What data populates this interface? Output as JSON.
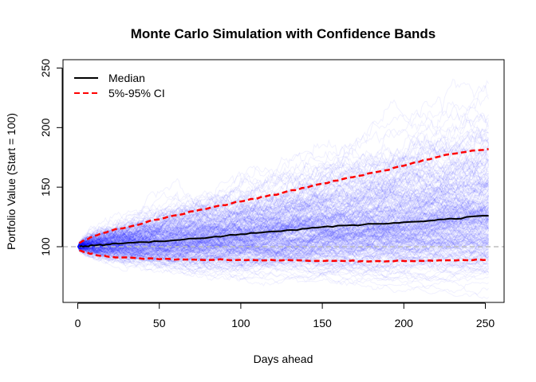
{
  "chart_data": {
    "type": "line",
    "title": "Monte Carlo Simulation with Confidence Bands",
    "xlabel": "Days ahead",
    "ylabel": "Portfolio Value (Start = 100)",
    "xlim": [
      0,
      252
    ],
    "ylim": [
      70,
      250
    ],
    "xticks": [
      "0",
      "50",
      "100",
      "150",
      "200",
      "250"
    ],
    "yticks": [
      "100",
      "150",
      "200",
      "250"
    ],
    "grid": false,
    "legend_position": "top-left",
    "legend": [
      "Median",
      "5%-95% CI"
    ],
    "reference_line": {
      "y": 100,
      "style": "dashed",
      "color": "#bdbdbd"
    },
    "simulated_paths": {
      "color": "#0000ff",
      "start": 100,
      "days": 252
    },
    "series": [
      {
        "name": "Median",
        "color": "#000000",
        "style": "solid",
        "x": [
          1,
          10,
          25,
          50,
          75,
          100,
          125,
          150,
          175,
          200,
          225,
          252
        ],
        "y": [
          100,
          101,
          102.5,
          104.5,
          107,
          110.5,
          113,
          116.5,
          118.5,
          120.5,
          123,
          126
        ]
      },
      {
        "name": "5%-95% CI",
        "color": "#ff0000",
        "style": "dashed",
        "x": [
          1,
          10,
          25,
          50,
          75,
          100,
          125,
          150,
          175,
          200,
          225,
          252
        ],
        "y": [
          103,
          109,
          115,
          123,
          131,
          138,
          145,
          153,
          160,
          168,
          177,
          182
        ]
      },
      {
        "name": "5%-95% CI",
        "color": "#ff0000",
        "style": "dashed",
        "x": [
          1,
          10,
          25,
          50,
          75,
          100,
          125,
          150,
          175,
          200,
          225,
          252
        ],
        "y": [
          97,
          93.5,
          91,
          89.5,
          89,
          89,
          88.5,
          88,
          88,
          88,
          88.5,
          89
        ]
      }
    ]
  }
}
